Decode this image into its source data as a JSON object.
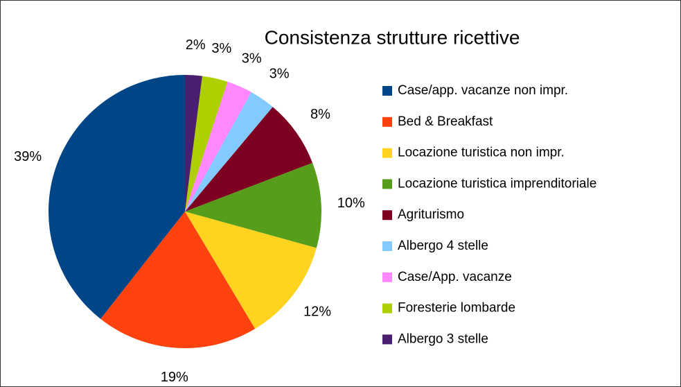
{
  "chart_data": {
    "type": "pie",
    "title": "Consistenza strutture ricettive",
    "categories": [
      "Case/app. vacanze non impr.",
      "Bed & Breakfast",
      "Locazione turistica non impr.",
      "Locazione turistica imprenditoriale",
      "Agriturismo",
      "Albergo 4 stelle",
      "Case/App. vacanze",
      "Foresterie lombarde",
      "Albergo 3 stelle"
    ],
    "values": [
      39,
      19,
      12,
      10,
      8,
      3,
      3,
      3,
      2
    ],
    "value_labels": [
      "39%",
      "19%",
      "12%",
      "10%",
      "8%",
      "3%",
      "3%",
      "3%",
      "2%"
    ],
    "colors": [
      "#004586",
      "#ff420e",
      "#ffd320",
      "#579d1c",
      "#7e0021",
      "#83caff",
      "#ff88ff",
      "#aecf00",
      "#4b1f6f"
    ],
    "legend": "right"
  }
}
